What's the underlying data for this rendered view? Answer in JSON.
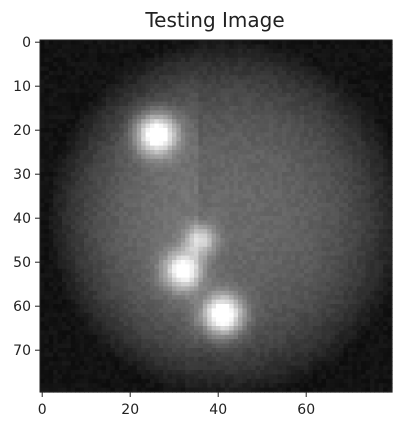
{
  "figure": {
    "title": "Testing Image",
    "colormap": "gray",
    "background_color": "#ffffff",
    "text_color": "#222222",
    "axis_color": "#222222"
  },
  "image": {
    "description_shape": "grayscale intensity image of a circular field with bright spots",
    "grid_size": [
      80,
      80
    ],
    "x_ticks": [
      0,
      20,
      40,
      60
    ],
    "y_ticks": [
      0,
      10,
      20,
      30,
      40,
      50,
      60,
      70
    ],
    "xlim": [
      -0.5,
      79.5
    ],
    "ylim": [
      79.5,
      -0.5
    ],
    "field": {
      "center": [
        42,
        40
      ],
      "radius": 41,
      "base_intensity": 0.12,
      "field_intensity": 0.3,
      "left_half_boost": 0.05
    },
    "spots": [
      {
        "x": 26,
        "y": 21,
        "sigma": 3.2,
        "intensity": 0.78
      },
      {
        "x": 36,
        "y": 45,
        "sigma": 2.4,
        "intensity": 0.45
      },
      {
        "x": 32,
        "y": 52,
        "sigma": 3.0,
        "intensity": 0.65
      },
      {
        "x": 41,
        "y": 62,
        "sigma": 3.2,
        "intensity": 0.8
      }
    ]
  }
}
